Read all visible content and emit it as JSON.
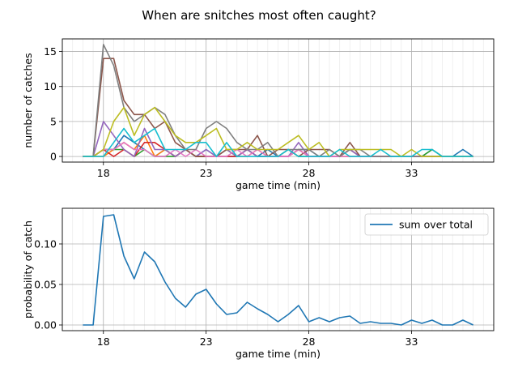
{
  "chart_data": [
    {
      "type": "line",
      "title": "When are snitches most often caught?",
      "xlabel": "game time (min)",
      "ylabel": "number of catches",
      "xlim": [
        16.0,
        37.0
      ],
      "ylim": [
        -0.8,
        16.8
      ],
      "xticks": [
        18,
        23,
        28,
        33
      ],
      "yticks": [
        0,
        5,
        10,
        15
      ],
      "minor_x_step": 0.5,
      "grid": "major-solid, minor-x-faint",
      "x": [
        17.0,
        17.5,
        18.0,
        18.5,
        19.0,
        19.5,
        20.0,
        20.5,
        21.0,
        21.5,
        22.0,
        22.5,
        23.0,
        23.5,
        24.0,
        24.5,
        25.0,
        25.5,
        26.0,
        26.5,
        27.0,
        27.5,
        28.0,
        28.5,
        29.0,
        29.5,
        30.0,
        30.5,
        31.0,
        31.5,
        32.0,
        32.5,
        33.0,
        33.5,
        34.0,
        34.5,
        35.0,
        35.5,
        36.0
      ],
      "series": [
        {
          "color": "#1f77b4",
          "values": [
            0,
            0,
            1,
            1,
            3,
            2,
            1,
            0,
            1,
            0,
            1,
            0,
            1,
            0,
            0,
            0,
            1,
            0,
            1,
            0,
            0,
            1,
            1,
            0,
            0,
            0,
            1,
            0,
            0,
            0,
            0,
            0,
            0,
            0,
            1,
            0,
            0,
            1,
            0
          ]
        },
        {
          "color": "#ff7f0e",
          "values": [
            0,
            0,
            0,
            1,
            2,
            1,
            3,
            0,
            1,
            0,
            1,
            0,
            0,
            0,
            1,
            0,
            0,
            1,
            0,
            0,
            0,
            1,
            0,
            0,
            0,
            0,
            0,
            0,
            0,
            0,
            0,
            0,
            0,
            0,
            0,
            0,
            0,
            0,
            0
          ]
        },
        {
          "color": "#2ca02c",
          "values": [
            0,
            0,
            1,
            1,
            1,
            0,
            1,
            0,
            0,
            0,
            1,
            0,
            0,
            0,
            1,
            0,
            1,
            0,
            0,
            0,
            1,
            0,
            0,
            0,
            0,
            0,
            1,
            0,
            0,
            0,
            0,
            0,
            0,
            0,
            1,
            0,
            0,
            0,
            0
          ]
        },
        {
          "color": "#d62728",
          "values": [
            0,
            0,
            1,
            0,
            1,
            0,
            2,
            2,
            1,
            0,
            1,
            0,
            0,
            0,
            0,
            0,
            1,
            0,
            0,
            0,
            0,
            1,
            0,
            0,
            0,
            0,
            1,
            0,
            0,
            0,
            0,
            0,
            0,
            0,
            0,
            0,
            0,
            0,
            0
          ]
        },
        {
          "color": "#9467bd",
          "values": [
            0,
            0,
            5,
            3,
            1,
            0,
            4,
            1,
            1,
            0,
            1,
            0,
            1,
            0,
            1,
            0,
            1,
            0,
            0,
            0,
            0,
            2,
            0,
            0,
            0,
            0,
            1,
            0,
            0,
            0,
            0,
            0,
            0,
            0,
            0,
            0,
            0,
            0,
            0
          ]
        },
        {
          "color": "#8c564b",
          "values": [
            0,
            0,
            14,
            14,
            8,
            6,
            6,
            4,
            5,
            2,
            1,
            0,
            0,
            0,
            1,
            1,
            1,
            3,
            0,
            1,
            1,
            0,
            1,
            1,
            1,
            0,
            2,
            0,
            0,
            0,
            0,
            0,
            0,
            0,
            0,
            0,
            0,
            0,
            0
          ]
        },
        {
          "color": "#e377c2",
          "values": [
            0,
            0,
            1,
            1,
            2,
            1,
            1,
            0,
            0,
            1,
            0,
            1,
            0,
            0,
            0,
            1,
            0,
            1,
            0,
            0,
            0,
            1,
            0,
            0,
            0,
            0,
            0,
            0,
            0,
            0,
            0,
            0,
            0,
            0,
            0,
            0,
            0,
            0,
            0
          ]
        },
        {
          "color": "#7f7f7f",
          "values": [
            0,
            0,
            16,
            13,
            7,
            5,
            6,
            7,
            6,
            3,
            1,
            1,
            4,
            5,
            4,
            2,
            1,
            1,
            2,
            0,
            1,
            1,
            1,
            0,
            1,
            0,
            1,
            1,
            0,
            0,
            0,
            0,
            0,
            0,
            0,
            0,
            0,
            0,
            0
          ]
        },
        {
          "color": "#bcbd22",
          "values": [
            0,
            0,
            1,
            5,
            7,
            3,
            6,
            7,
            5,
            3,
            2,
            2,
            3,
            4,
            1,
            1,
            2,
            1,
            1,
            1,
            2,
            3,
            1,
            2,
            0,
            1,
            1,
            1,
            1,
            1,
            1,
            0,
            1,
            0,
            0,
            0,
            0,
            0,
            0
          ]
        },
        {
          "color": "#17becf",
          "values": [
            0,
            0,
            0,
            2,
            4,
            2,
            3,
            4,
            1,
            1,
            1,
            2,
            2,
            0,
            2,
            0,
            0,
            0,
            0,
            0,
            1,
            0,
            0,
            0,
            0,
            1,
            0,
            0,
            0,
            1,
            0,
            0,
            0,
            1,
            1,
            0,
            0,
            0,
            0
          ]
        }
      ]
    },
    {
      "type": "line",
      "xlabel": "game time (min)",
      "ylabel": "probability of catch",
      "xlim": [
        16.0,
        37.0
      ],
      "ylim": [
        -0.007,
        0.144
      ],
      "xticks": [
        18,
        23,
        28,
        33
      ],
      "yticks": [
        0.0,
        0.05,
        0.1
      ],
      "ytick_labels": [
        "0.00",
        "0.05",
        "0.10"
      ],
      "minor_x_step": 0.5,
      "grid": "major-solid, minor-x-faint",
      "legend": "upper-right",
      "x": [
        17.0,
        17.5,
        18.0,
        18.5,
        19.0,
        19.5,
        20.0,
        20.5,
        21.0,
        21.5,
        22.0,
        22.5,
        23.0,
        23.5,
        24.0,
        24.5,
        25.0,
        25.5,
        26.0,
        26.5,
        27.0,
        27.5,
        28.0,
        28.5,
        29.0,
        29.5,
        30.0,
        30.5,
        31.0,
        31.5,
        32.0,
        32.5,
        33.0,
        33.5,
        34.0,
        34.5,
        35.0,
        35.5,
        36.0
      ],
      "series": [
        {
          "name": "sum over total",
          "color": "#1f77b4",
          "values": [
            0.0,
            0.0,
            0.134,
            0.136,
            0.085,
            0.057,
            0.09,
            0.078,
            0.053,
            0.033,
            0.022,
            0.038,
            0.044,
            0.026,
            0.013,
            0.015,
            0.028,
            0.02,
            0.013,
            0.004,
            0.013,
            0.024,
            0.004,
            0.009,
            0.004,
            0.009,
            0.011,
            0.002,
            0.004,
            0.002,
            0.002,
            0.0,
            0.006,
            0.002,
            0.006,
            0.0,
            0.0,
            0.006,
            0.0
          ]
        }
      ]
    }
  ]
}
